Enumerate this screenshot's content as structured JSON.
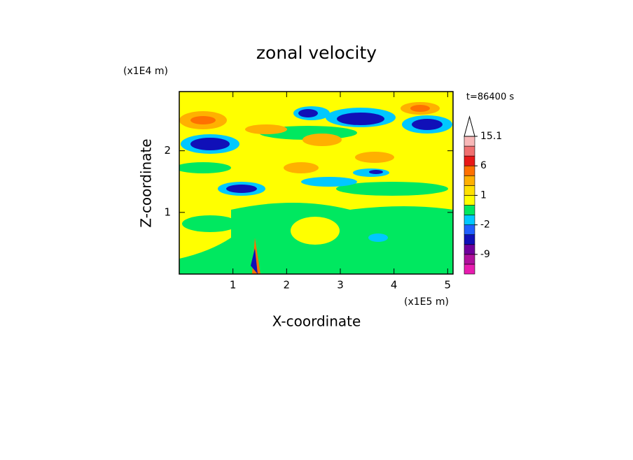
{
  "chart_data": {
    "type": "contour",
    "title": "zonal velocity",
    "x_label": "X-coordinate",
    "y_label": "Z-coordinate",
    "x_unit": "(x1E5 m)",
    "y_unit": "(x1E4 m)",
    "annotation": "t=86400 s",
    "xlim": [
      0,
      5.1
    ],
    "ylim": [
      0,
      2.96
    ],
    "xticks": [
      1,
      2,
      3,
      4,
      5
    ],
    "yticks": [
      1,
      2
    ],
    "colorbar": {
      "levels": [
        -15,
        -12,
        -9,
        -6,
        -3,
        -2,
        -1,
        0,
        1,
        2,
        3,
        6,
        9,
        12,
        15.1
      ],
      "colors": [
        "#e81cb0",
        "#b0109c",
        "#70009c",
        "#1010b8",
        "#2060ff",
        "#00c8ff",
        "#00e860",
        "#ffff00",
        "#ffe000",
        "#ffb000",
        "#ff7000",
        "#e81818",
        "#f07070",
        "#f8b8b8"
      ],
      "ticks": [
        15.1,
        6,
        1,
        -2,
        -9
      ]
    }
  }
}
